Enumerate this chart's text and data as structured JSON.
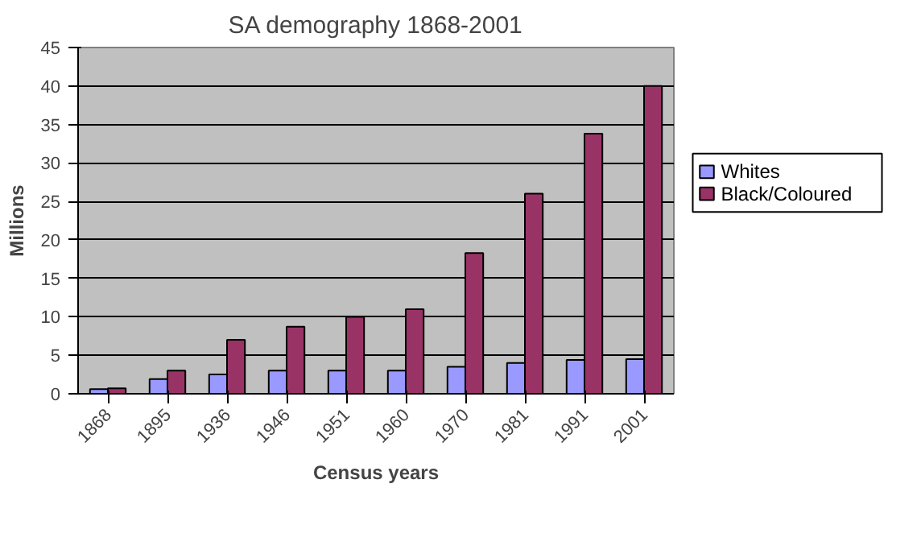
{
  "chart_data": {
    "type": "bar",
    "title": "SA demography 1868-2001",
    "xlabel": "Census years",
    "ylabel": "Millions",
    "categories": [
      "1868",
      "1895",
      "1936",
      "1946",
      "1951",
      "1960",
      "1970",
      "1981",
      "1991",
      "2001"
    ],
    "series": [
      {
        "name": "Whites",
        "color": "#9999ff",
        "values": [
          0.6,
          1.9,
          2.5,
          3,
          3,
          3,
          3.5,
          4,
          4.4,
          4.5
        ]
      },
      {
        "name": "Black/Coloured",
        "color": "#993366",
        "values": [
          0.7,
          3,
          7,
          8.7,
          10,
          11,
          18.3,
          26,
          33.8,
          40
        ]
      }
    ],
    "ylim": [
      0,
      45
    ],
    "yticks": [
      0,
      5,
      10,
      15,
      20,
      25,
      30,
      35,
      40,
      45
    ],
    "grid": "y",
    "legend": "right"
  }
}
